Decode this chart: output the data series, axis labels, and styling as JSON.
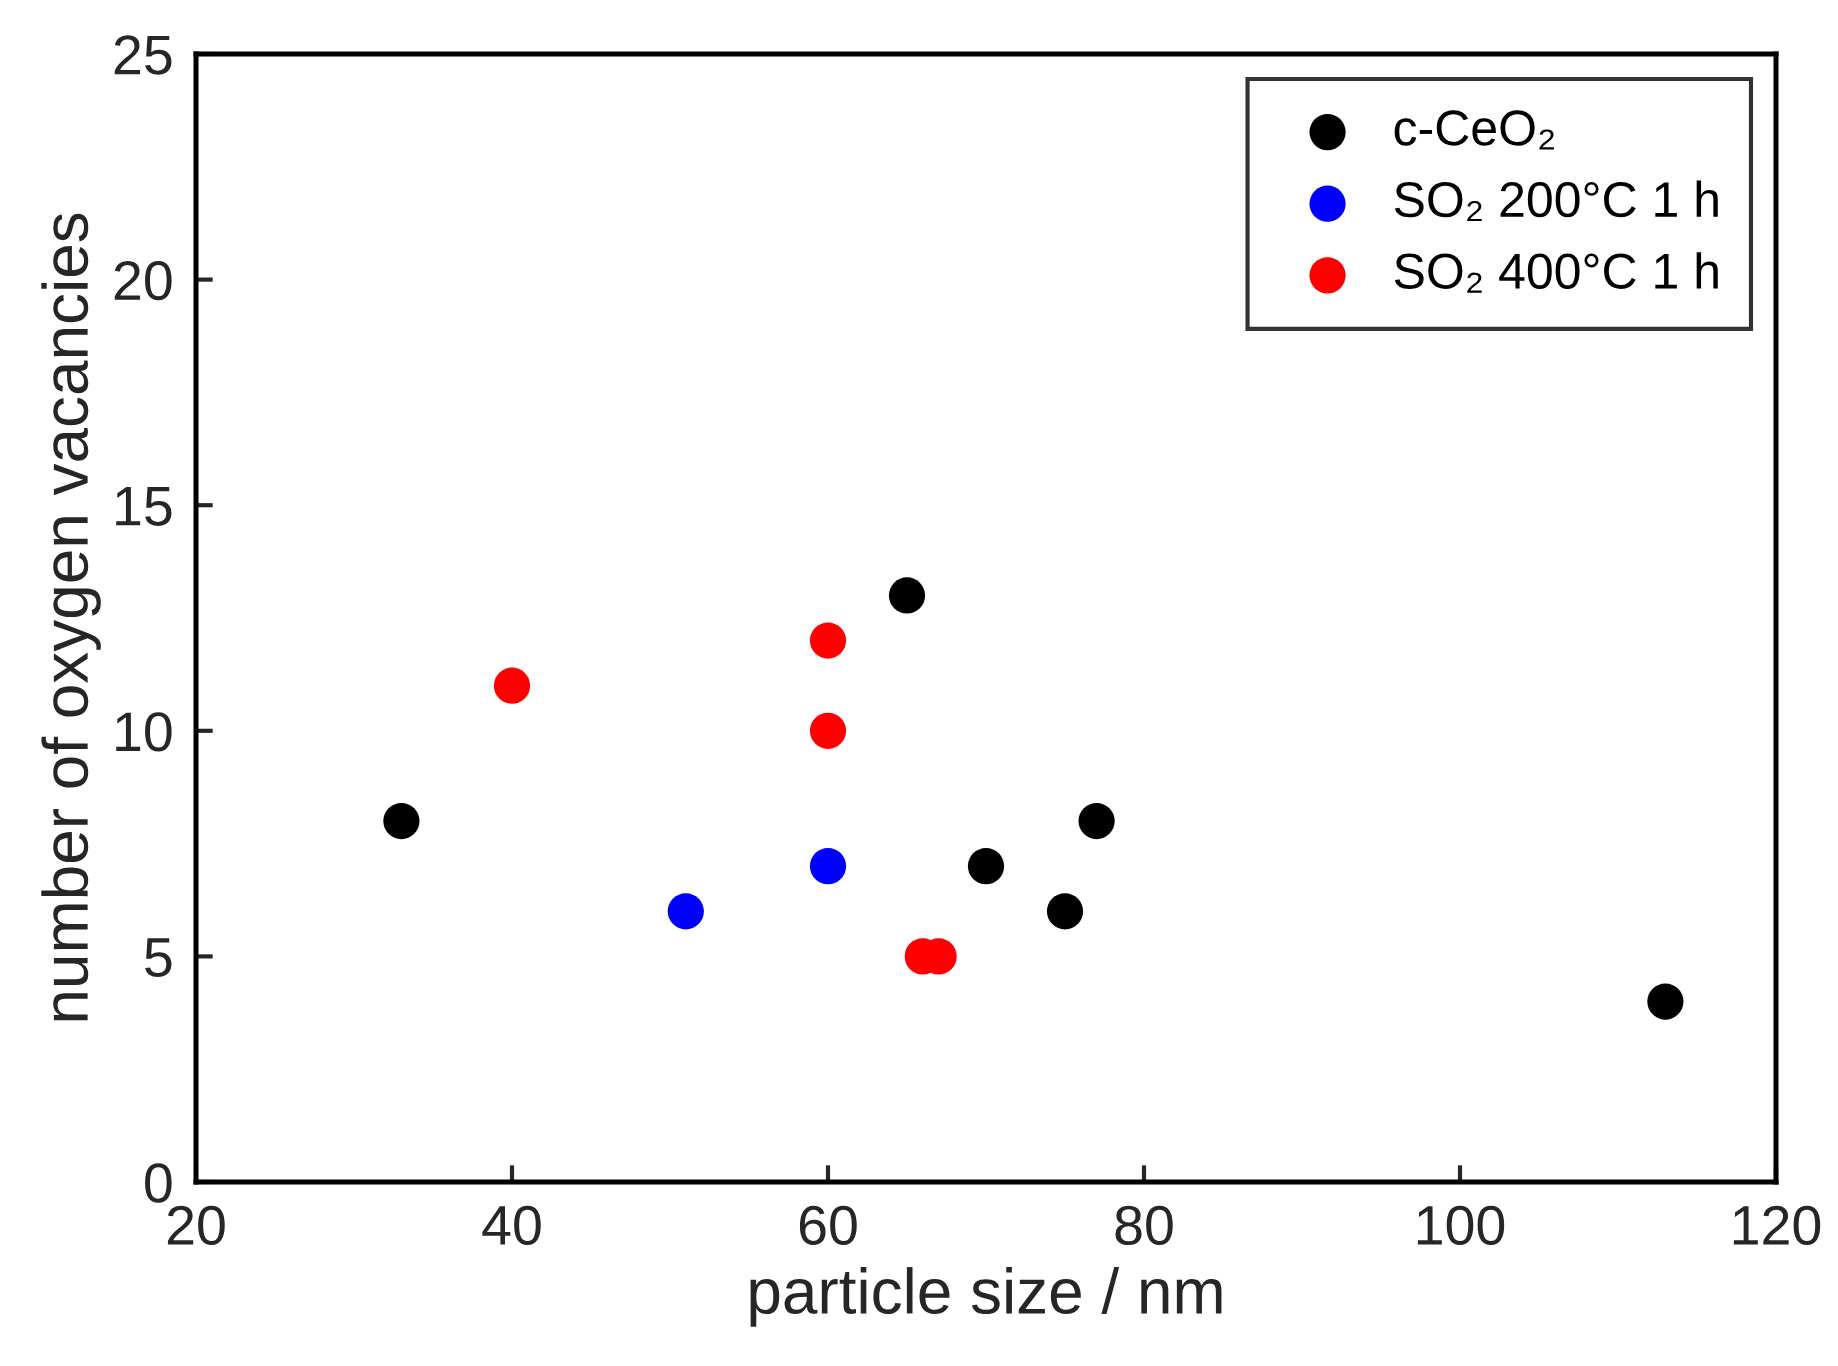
{
  "chart_data": {
    "type": "scatter",
    "xlabel": "particle size / nm",
    "ylabel": "number of oxygen vacancies",
    "xlim": [
      20,
      120
    ],
    "xticks": [
      20,
      40,
      60,
      80,
      100,
      120
    ],
    "ylim": [
      0,
      25
    ],
    "yticks": [
      0,
      5,
      10,
      15,
      20,
      25
    ],
    "grid": false,
    "legend": "top right",
    "marker": "circle",
    "series": [
      {
        "name": "c-CeO₂",
        "color": "#000000",
        "x": [
          33,
          65,
          70,
          75,
          77,
          113
        ],
        "values": [
          8,
          13,
          7,
          6,
          8,
          4
        ]
      },
      {
        "name": "SO₂ 200°C 1 h",
        "color": "#0000ff",
        "x": [
          51,
          60
        ],
        "values": [
          6,
          7
        ]
      },
      {
        "name": "SO₂ 400°C 1 h",
        "color": "#ff0000",
        "x": [
          40,
          60,
          60,
          66,
          67
        ],
        "values": [
          11,
          12,
          10,
          5,
          5
        ]
      }
    ]
  }
}
